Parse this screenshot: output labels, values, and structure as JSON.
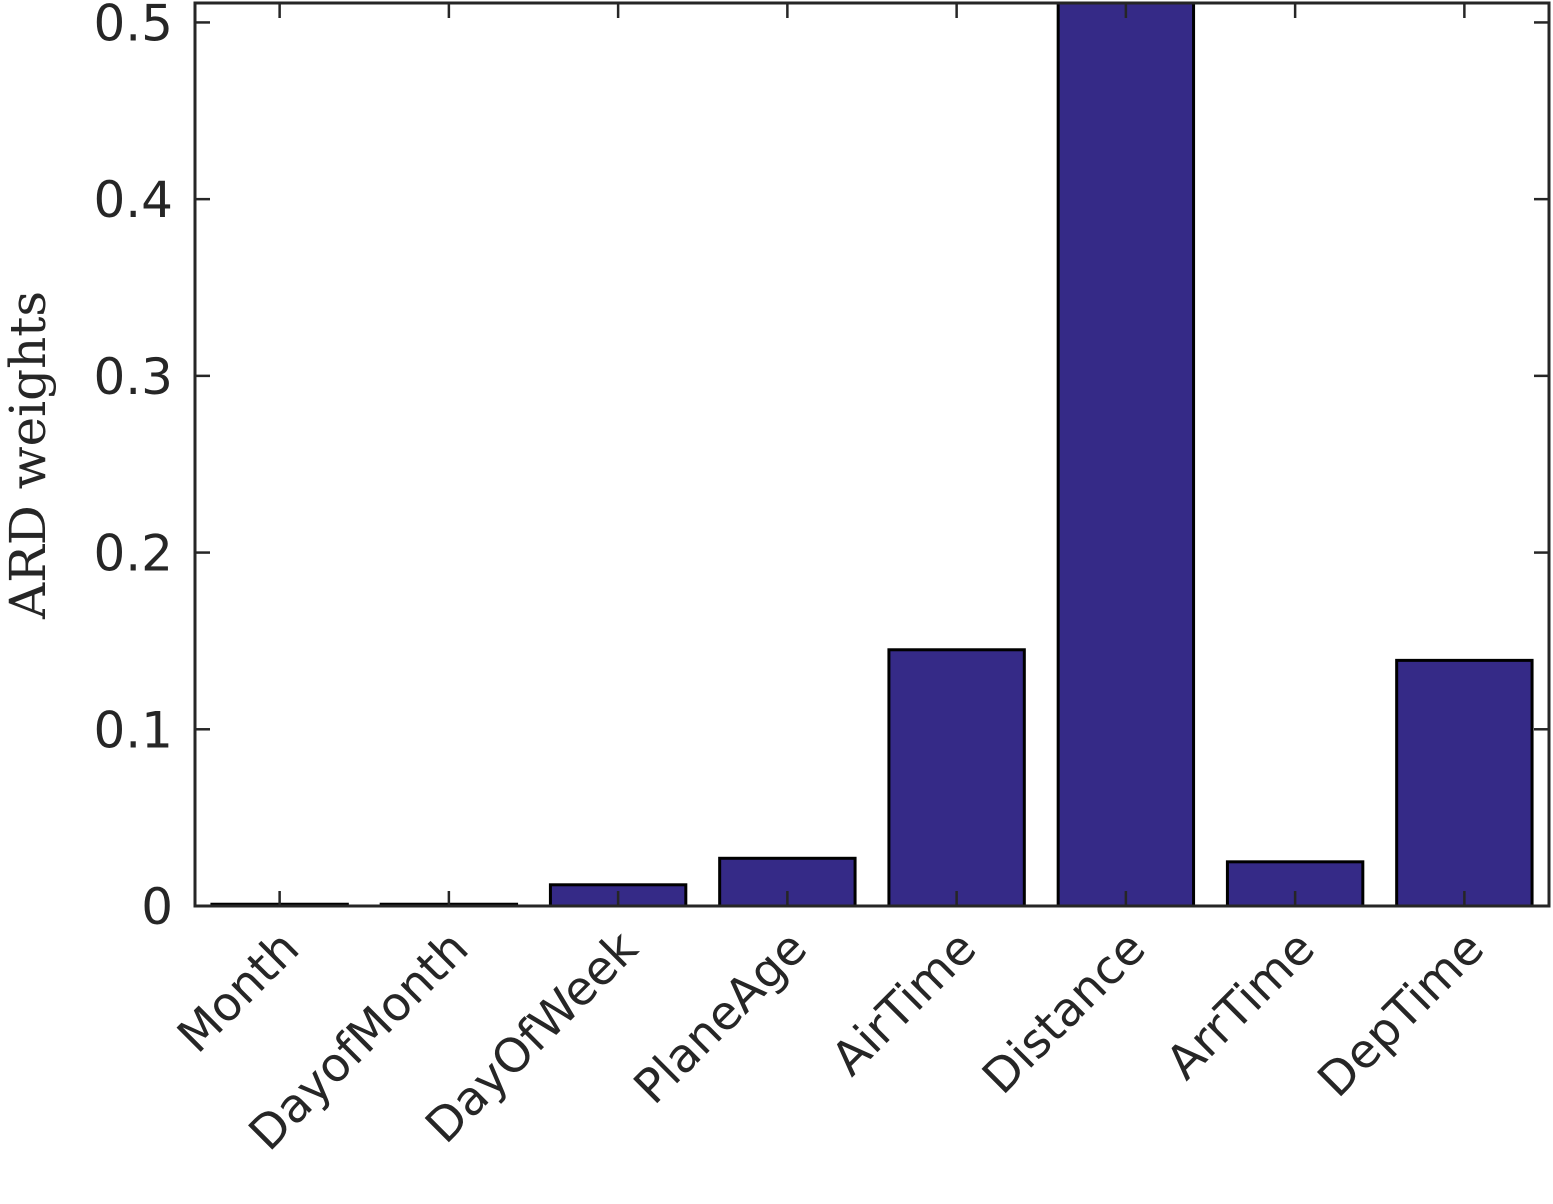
{
  "chart_data": {
    "type": "bar",
    "categories": [
      "Month",
      "DayofMonth",
      "DayOfWeek",
      "PlaneAge",
      "AirTime",
      "Distance",
      "ArrTime",
      "DepTime"
    ],
    "values": [
      0.001,
      0.001,
      0.012,
      0.027,
      0.145,
      0.511,
      0.025,
      0.139
    ],
    "ylabel": "ARD weights",
    "xlabel": "",
    "title": "",
    "ylim": [
      0,
      0.511
    ],
    "yticks": [
      0,
      0.1,
      0.2,
      0.3,
      0.4,
      0.5
    ],
    "ytick_labels": [
      "0",
      "0.1",
      "0.2",
      "0.3",
      "0.4",
      "0.5"
    ],
    "grid": false,
    "legend": "none",
    "bar_color": "#352a87",
    "edge_color": "#000000"
  }
}
